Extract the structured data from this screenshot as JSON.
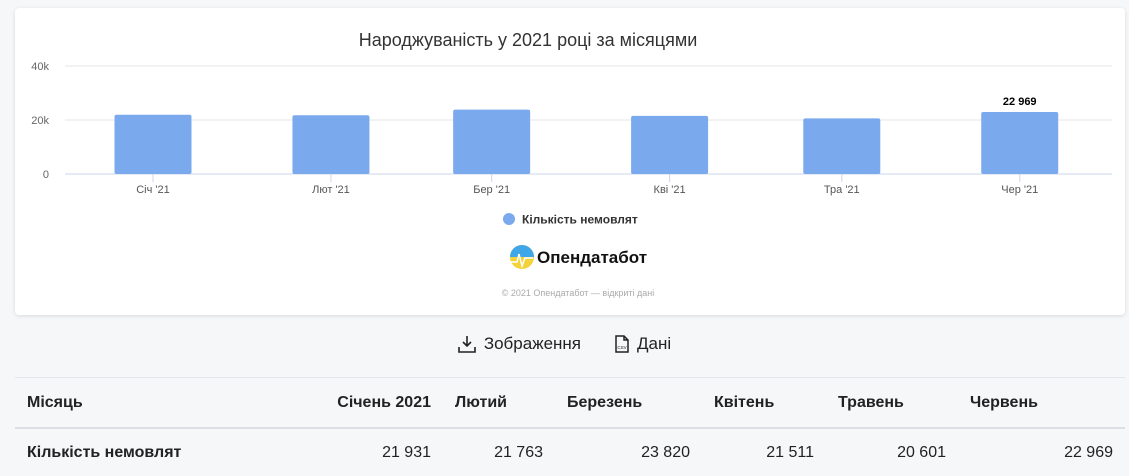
{
  "chart_data": {
    "type": "bar",
    "title": "Народжуваність у 2021 році за місяцями",
    "categories": [
      "Січ '21",
      "Лют '21",
      "Бер '21",
      "Кві '21",
      "Тра '21",
      "Чер '21"
    ],
    "series": [
      {
        "name": "Кількість немовлят",
        "values": [
          21931,
          21763,
          23820,
          21511,
          20601,
          22969
        ],
        "color": "#7aa9ee"
      }
    ],
    "data_labels": [
      {
        "index": 5,
        "text": "22 969"
      }
    ],
    "yticks": [
      "0",
      "20k",
      "40k"
    ],
    "ylim": [
      0,
      40000
    ],
    "grid": true,
    "legend": "bottom-center",
    "xaxis": "datetime"
  },
  "branding": {
    "logo_text": "Опендатабот",
    "credits": "© 2021 Опендатабот — відкриті дані"
  },
  "actions": {
    "image_label": "Зображення",
    "data_label": "Дані"
  },
  "table": {
    "headers": [
      "Місяць",
      "Січень 2021",
      "Лютий",
      "Березень",
      "Квітень",
      "Травень",
      "Червень"
    ],
    "row_label": "Кількість немовлят",
    "values": [
      "21 931",
      "21 763",
      "23 820",
      "21 511",
      "20 601",
      "22 969"
    ]
  }
}
